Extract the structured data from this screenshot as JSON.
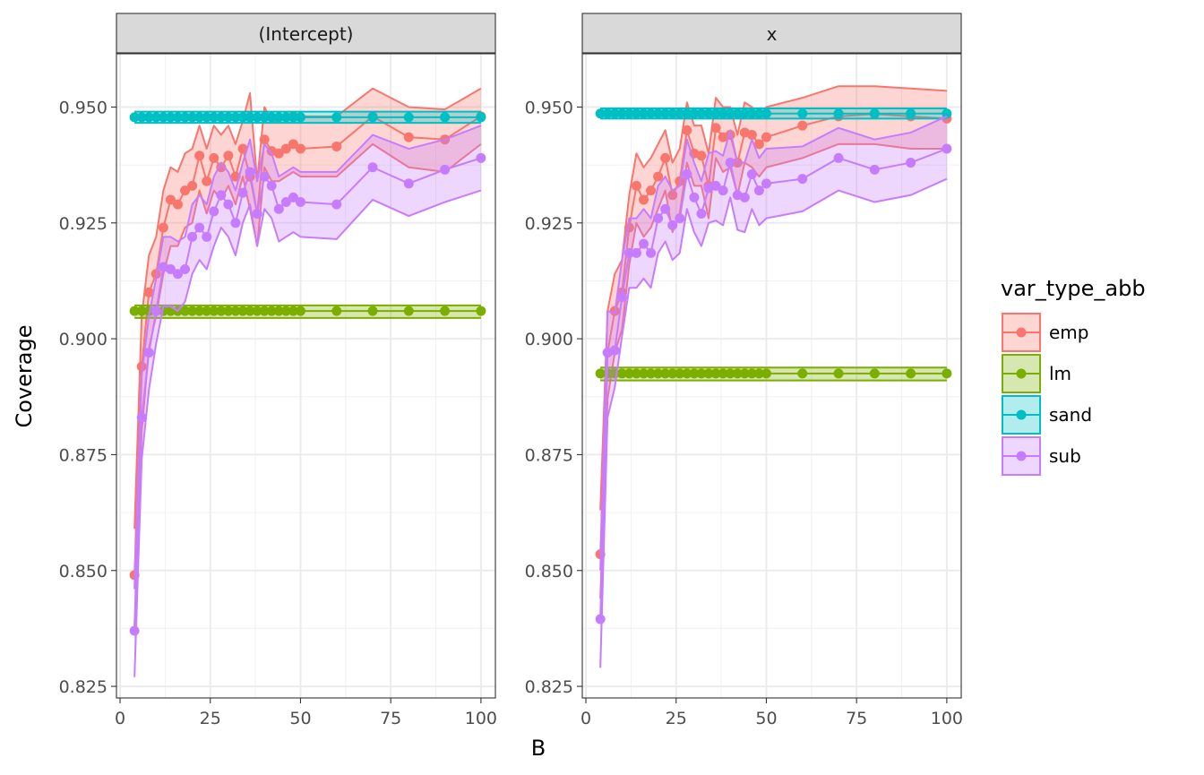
{
  "chart_data": {
    "type": "line",
    "xlabel": "B",
    "ylabel": "Coverage",
    "xlim": [
      -1,
      104
    ],
    "ylim": [
      0.8225,
      0.9615
    ],
    "x_ticks": [
      0,
      25,
      50,
      75,
      100
    ],
    "x_tick_labels": [
      "0",
      "25",
      "50",
      "75",
      "100"
    ],
    "y_ticks": [
      0.825,
      0.85,
      0.875,
      0.9,
      0.925,
      0.95
    ],
    "y_tick_labels": [
      "0.825",
      "0.850",
      "0.875",
      "0.900",
      "0.925",
      "0.950"
    ],
    "grid": true,
    "legend": {
      "title": "var_type_abb",
      "placement": "right",
      "entries": [
        "emp",
        "lm",
        "sand",
        "sub"
      ]
    },
    "colors": {
      "emp": "#F8766D",
      "lm": "#7CAE00",
      "sand": "#00BFC4",
      "sub": "#C77CFF"
    },
    "x": [
      4,
      6,
      8,
      10,
      12,
      14,
      16,
      18,
      20,
      22,
      24,
      26,
      28,
      30,
      32,
      34,
      36,
      38,
      40,
      42,
      44,
      46,
      48,
      50,
      60,
      70,
      80,
      90,
      100
    ],
    "panels": [
      {
        "strip": "(Intercept)",
        "series": [
          {
            "name": "emp",
            "values": [
              0.849,
              0.894,
              0.91,
              0.914,
              0.924,
              0.93,
              0.929,
              0.932,
              0.933,
              0.9395,
              0.934,
              0.939,
              0.937,
              0.9395,
              0.935,
              0.941,
              0.935,
              0.927,
              0.943,
              0.9405,
              0.94,
              0.941,
              0.942,
              0.941,
              0.9415,
              0.948,
              0.9435,
              0.943,
              0.948
            ],
            "lower": [
              0.838,
              0.88,
              0.898,
              0.905,
              0.914,
              0.92,
              0.92,
              0.924,
              0.925,
              0.932,
              0.927,
              0.932,
              0.93,
              0.933,
              0.929,
              0.935,
              0.928,
              0.92,
              0.937,
              0.934,
              0.934,
              0.935,
              0.936,
              0.935,
              0.935,
              0.942,
              0.937,
              0.936,
              0.942
            ],
            "upper": [
              0.859,
              0.905,
              0.918,
              0.922,
              0.932,
              0.937,
              0.936,
              0.94,
              0.941,
              0.946,
              0.941,
              0.946,
              0.944,
              0.946,
              0.942,
              0.947,
              0.953,
              0.934,
              0.95,
              0.947,
              0.947,
              0.948,
              0.949,
              0.948,
              0.948,
              0.954,
              0.95,
              0.9495,
              0.954
            ]
          },
          {
            "name": "lm",
            "values": [
              0.906,
              0.906,
              0.906,
              0.906,
              0.906,
              0.906,
              0.906,
              0.906,
              0.906,
              0.906,
              0.906,
              0.906,
              0.906,
              0.906,
              0.906,
              0.906,
              0.906,
              0.906,
              0.906,
              0.906,
              0.906,
              0.906,
              0.906,
              0.906,
              0.906,
              0.906,
              0.906,
              0.906,
              0.906
            ],
            "lower": [
              0.9045,
              0.9045,
              0.9045,
              0.9045,
              0.9045,
              0.9045,
              0.9045,
              0.9045,
              0.9045,
              0.9045,
              0.9045,
              0.9045,
              0.9045,
              0.9045,
              0.9045,
              0.9045,
              0.9045,
              0.9045,
              0.9045,
              0.9045,
              0.9045,
              0.9045,
              0.9045,
              0.9045,
              0.9045,
              0.9045,
              0.9045,
              0.9045,
              0.9045
            ],
            "upper": [
              0.9072,
              0.9072,
              0.9072,
              0.9072,
              0.9072,
              0.9072,
              0.9072,
              0.9072,
              0.9072,
              0.9072,
              0.9072,
              0.9072,
              0.9072,
              0.9072,
              0.9072,
              0.9072,
              0.9072,
              0.9072,
              0.9072,
              0.9072,
              0.9072,
              0.9072,
              0.9072,
              0.9072,
              0.9072,
              0.9072,
              0.9072,
              0.9072,
              0.9072
            ]
          },
          {
            "name": "sand",
            "values": [
              0.9478,
              0.9478,
              0.9478,
              0.9478,
              0.9478,
              0.9478,
              0.9478,
              0.9478,
              0.9478,
              0.9478,
              0.9478,
              0.9478,
              0.9478,
              0.9478,
              0.9478,
              0.9478,
              0.9478,
              0.9478,
              0.9478,
              0.9478,
              0.9478,
              0.9478,
              0.9478,
              0.9478,
              0.9478,
              0.9478,
              0.9478,
              0.9478,
              0.9478
            ],
            "lower": [
              0.9466,
              0.9466,
              0.9466,
              0.9466,
              0.9466,
              0.9466,
              0.9466,
              0.9466,
              0.9466,
              0.9466,
              0.9466,
              0.9466,
              0.9466,
              0.9466,
              0.9466,
              0.9466,
              0.9466,
              0.9466,
              0.9466,
              0.9466,
              0.9466,
              0.9466,
              0.9466,
              0.9466,
              0.9466,
              0.9466,
              0.9466,
              0.9466,
              0.9466
            ],
            "upper": [
              0.949,
              0.949,
              0.949,
              0.949,
              0.949,
              0.949,
              0.949,
              0.949,
              0.949,
              0.949,
              0.949,
              0.949,
              0.949,
              0.949,
              0.949,
              0.949,
              0.949,
              0.949,
              0.949,
              0.949,
              0.949,
              0.949,
              0.949,
              0.949,
              0.949,
              0.949,
              0.949,
              0.949,
              0.949
            ]
          },
          {
            "name": "sub",
            "values": [
              0.837,
              0.883,
              0.897,
              0.906,
              0.9155,
              0.915,
              0.914,
              0.915,
              0.922,
              0.924,
              0.922,
              0.9275,
              0.931,
              0.929,
              0.925,
              0.9315,
              0.936,
              0.927,
              0.935,
              0.933,
              0.928,
              0.9295,
              0.9305,
              0.9295,
              0.929,
              0.937,
              0.9335,
              0.9365,
              0.939
            ],
            "lower": [
              0.827,
              0.874,
              0.889,
              0.899,
              0.907,
              0.907,
              0.906,
              0.908,
              0.914,
              0.917,
              0.915,
              0.92,
              0.924,
              0.922,
              0.918,
              0.925,
              0.929,
              0.92,
              0.928,
              0.926,
              0.921,
              0.922,
              0.923,
              0.922,
              0.9215,
              0.93,
              0.9265,
              0.9295,
              0.932
            ],
            "upper": [
              0.846,
              0.892,
              0.905,
              0.913,
              0.922,
              0.922,
              0.921,
              0.922,
              0.929,
              0.931,
              0.929,
              0.935,
              0.938,
              0.936,
              0.932,
              0.938,
              0.943,
              0.934,
              0.942,
              0.94,
              0.935,
              0.936,
              0.937,
              0.936,
              0.936,
              0.944,
              0.941,
              0.943,
              0.946
            ]
          }
        ]
      },
      {
        "strip": "x",
        "series": [
          {
            "name": "emp",
            "values": [
              0.8535,
              0.897,
              0.906,
              0.91,
              0.924,
              0.933,
              0.93,
              0.932,
              0.935,
              0.939,
              0.931,
              0.934,
              0.945,
              0.94,
              0.9395,
              0.933,
              0.9455,
              0.9435,
              0.944,
              0.938,
              0.9445,
              0.944,
              0.942,
              0.9435,
              0.946,
              0.948,
              0.9485,
              0.948,
              0.9475
            ],
            "lower": [
              0.844,
              0.887,
              0.897,
              0.902,
              0.916,
              0.925,
              0.922,
              0.924,
              0.928,
              0.932,
              0.923,
              0.927,
              0.938,
              0.933,
              0.933,
              0.926,
              0.939,
              0.936,
              0.937,
              0.931,
              0.938,
              0.937,
              0.935,
              0.937,
              0.939,
              0.942,
              0.942,
              0.941,
              0.941
            ],
            "upper": [
              0.863,
              0.906,
              0.914,
              0.917,
              0.931,
              0.94,
              0.937,
              0.939,
              0.942,
              0.945,
              0.938,
              0.941,
              0.951,
              0.946,
              0.946,
              0.94,
              0.952,
              0.95,
              0.95,
              0.944,
              0.951,
              0.95,
              0.948,
              0.95,
              0.952,
              0.9545,
              0.9545,
              0.954,
              0.9535
            ]
          },
          {
            "name": "lm",
            "values": [
              0.8925,
              0.8925,
              0.8925,
              0.8925,
              0.8925,
              0.8925,
              0.8925,
              0.8925,
              0.8925,
              0.8925,
              0.8925,
              0.8925,
              0.8925,
              0.8925,
              0.8925,
              0.8925,
              0.8925,
              0.8925,
              0.8925,
              0.8925,
              0.8925,
              0.8925,
              0.8925,
              0.8925,
              0.8925,
              0.8925,
              0.8925,
              0.8925,
              0.8925
            ],
            "lower": [
              0.891,
              0.891,
              0.891,
              0.891,
              0.891,
              0.891,
              0.891,
              0.891,
              0.891,
              0.891,
              0.891,
              0.891,
              0.891,
              0.891,
              0.891,
              0.891,
              0.891,
              0.891,
              0.891,
              0.891,
              0.891,
              0.891,
              0.891,
              0.891,
              0.891,
              0.891,
              0.891,
              0.891,
              0.891
            ],
            "upper": [
              0.8938,
              0.8938,
              0.8938,
              0.8938,
              0.8938,
              0.8938,
              0.8938,
              0.8938,
              0.8938,
              0.8938,
              0.8938,
              0.8938,
              0.8938,
              0.8938,
              0.8938,
              0.8938,
              0.8938,
              0.8938,
              0.8938,
              0.8938,
              0.8938,
              0.8938,
              0.8938,
              0.8938,
              0.8938,
              0.8938,
              0.8938,
              0.8938,
              0.8938
            ]
          },
          {
            "name": "sand",
            "values": [
              0.9486,
              0.9486,
              0.9486,
              0.9486,
              0.9486,
              0.9486,
              0.9486,
              0.9486,
              0.9486,
              0.9486,
              0.9486,
              0.9486,
              0.9486,
              0.9486,
              0.9486,
              0.9486,
              0.9486,
              0.9486,
              0.9486,
              0.9486,
              0.9486,
              0.9486,
              0.9486,
              0.9486,
              0.9486,
              0.9486,
              0.9486,
              0.9486,
              0.9486
            ],
            "lower": [
              0.9475,
              0.9475,
              0.9475,
              0.9475,
              0.9475,
              0.9475,
              0.9475,
              0.9475,
              0.9475,
              0.9475,
              0.9475,
              0.9475,
              0.9475,
              0.9475,
              0.9475,
              0.9475,
              0.9475,
              0.9475,
              0.9475,
              0.9475,
              0.9475,
              0.9475,
              0.9475,
              0.9475,
              0.9475,
              0.9475,
              0.9475,
              0.9475,
              0.9475
            ],
            "upper": [
              0.9497,
              0.9497,
              0.9497,
              0.9497,
              0.9497,
              0.9497,
              0.9497,
              0.9497,
              0.9497,
              0.9497,
              0.9497,
              0.9497,
              0.9497,
              0.9497,
              0.9497,
              0.9497,
              0.9497,
              0.9497,
              0.9497,
              0.9497,
              0.9497,
              0.9497,
              0.9497,
              0.9497,
              0.9497,
              0.9497,
              0.9497,
              0.9497,
              0.9497
            ]
          },
          {
            "name": "sub",
            "values": [
              0.8395,
              0.897,
              0.8975,
              0.909,
              0.9185,
              0.9185,
              0.9205,
              0.9185,
              0.926,
              0.928,
              0.9245,
              0.926,
              0.9355,
              0.9305,
              0.927,
              0.9325,
              0.933,
              0.932,
              0.938,
              0.931,
              0.9305,
              0.9355,
              0.932,
              0.9335,
              0.9345,
              0.939,
              0.9365,
              0.938,
              0.941
            ],
            "lower": [
              0.829,
              0.883,
              0.8895,
              0.9005,
              0.911,
              0.911,
              0.913,
              0.911,
              0.9185,
              0.921,
              0.917,
              0.9185,
              0.928,
              0.923,
              0.92,
              0.925,
              0.9255,
              0.9245,
              0.9305,
              0.9235,
              0.923,
              0.928,
              0.9245,
              0.926,
              0.9275,
              0.932,
              0.9295,
              0.931,
              0.9345
            ],
            "upper": [
              0.85,
              0.906,
              0.9055,
              0.917,
              0.926,
              0.926,
              0.928,
              0.926,
              0.933,
              0.935,
              0.932,
              0.933,
              0.943,
              0.938,
              0.934,
              0.94,
              0.9405,
              0.9395,
              0.945,
              0.938,
              0.938,
              0.943,
              0.939,
              0.941,
              0.9415,
              0.9455,
              0.943,
              0.9445,
              0.948
            ]
          }
        ]
      }
    ]
  }
}
